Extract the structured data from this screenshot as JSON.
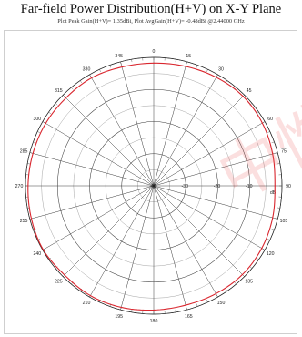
{
  "chart_data": {
    "type": "polar",
    "title": "Far-field Power Distribution(H+V) on X-Y Plane",
    "subtitle": "Plot Peak Gain(H+V)= 1.35dBi, Plot AvgGain(H+V)= -0.48dBi @2.44000 GHz",
    "angle_labels": [
      "0",
      "15",
      "30",
      "45",
      "60",
      "75",
      "90",
      "105",
      "120",
      "135",
      "150",
      "165",
      "180",
      "195",
      "210",
      "225",
      "240",
      "255",
      "270",
      "285",
      "300",
      "315",
      "330",
      "345"
    ],
    "radial_labels": [
      "-40",
      "-30",
      "-20",
      "-10"
    ],
    "radial_unit": "dB",
    "r_range": [
      -40,
      0
    ],
    "series": [
      {
        "color": "#d9262e",
        "angles": [
          0,
          15,
          30,
          45,
          60,
          75,
          90,
          105,
          120,
          135,
          150,
          165,
          180,
          195,
          210,
          225,
          240,
          255,
          270,
          285,
          300,
          315,
          330,
          345
        ],
        "values": [
          -1.8,
          -1.5,
          -1.0,
          -0.6,
          -0.9,
          -1.6,
          -2.2,
          -1.6,
          -1.1,
          -0.9,
          -1.2,
          -1.5,
          -1.3,
          -0.8,
          -0.5,
          -0.7,
          -0.2,
          -0.5,
          -0.8,
          -1.0,
          -1.1,
          -1.3,
          -1.2,
          -1.7
        ]
      }
    ]
  },
  "watermark": "中性"
}
